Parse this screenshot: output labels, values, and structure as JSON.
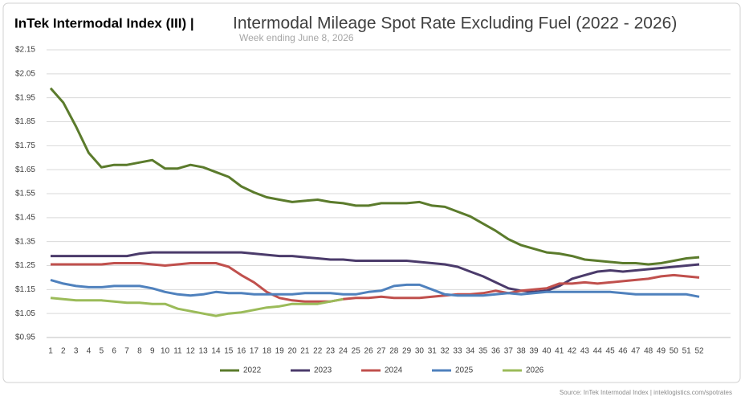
{
  "chart_data": {
    "type": "line",
    "brand": "InTek Intermodal Index (III) |",
    "title": "Intermodal Mileage Spot Rate Excluding Fuel (2022 - 2026)",
    "subtitle": "Week ending June 8, 2026",
    "source": "Source: InTek Intermodal Index | inteklogistics.com/spotrates",
    "x": [
      1,
      2,
      3,
      4,
      5,
      6,
      7,
      8,
      9,
      10,
      11,
      12,
      13,
      14,
      15,
      16,
      17,
      18,
      19,
      20,
      21,
      22,
      23,
      24,
      25,
      26,
      27,
      28,
      29,
      30,
      31,
      32,
      33,
      34,
      35,
      36,
      37,
      38,
      39,
      40,
      41,
      42,
      43,
      44,
      45,
      46,
      47,
      48,
      49,
      50,
      51,
      52
    ],
    "xlim": [
      1,
      52
    ],
    "ylim": [
      0.95,
      2.15
    ],
    "yticks": [
      {
        "value": 0.95,
        "label": "$0.95"
      },
      {
        "value": 1.05,
        "label": "$1.05"
      },
      {
        "value": 1.15,
        "label": "$1.15"
      },
      {
        "value": 1.25,
        "label": "$1.25"
      },
      {
        "value": 1.35,
        "label": "$1.35"
      },
      {
        "value": 1.45,
        "label": "$1.45"
      },
      {
        "value": 1.55,
        "label": "$1.55"
      },
      {
        "value": 1.65,
        "label": "$1.65"
      },
      {
        "value": 1.75,
        "label": "$1.75"
      },
      {
        "value": 1.85,
        "label": "$1.85"
      },
      {
        "value": 1.95,
        "label": "$1.95"
      },
      {
        "value": 2.05,
        "label": "$2.05"
      },
      {
        "value": 2.15,
        "label": "$2.15"
      }
    ],
    "grid": true,
    "legend": "bottom",
    "series": [
      {
        "name": "2022",
        "color": "#5b7b2c",
        "values": [
          1.99,
          1.93,
          1.83,
          1.72,
          1.66,
          1.67,
          1.67,
          1.68,
          1.69,
          1.655,
          1.655,
          1.67,
          1.66,
          1.64,
          1.62,
          1.58,
          1.555,
          1.535,
          1.525,
          1.515,
          1.52,
          1.525,
          1.515,
          1.51,
          1.5,
          1.5,
          1.51,
          1.51,
          1.51,
          1.515,
          1.5,
          1.495,
          1.475,
          1.455,
          1.425,
          1.395,
          1.36,
          1.335,
          1.32,
          1.305,
          1.3,
          1.29,
          1.275,
          1.27,
          1.265,
          1.26,
          1.26,
          1.255,
          1.26,
          1.27,
          1.28,
          1.285
        ]
      },
      {
        "name": "2023",
        "color": "#4b3b6b",
        "values": [
          1.29,
          1.29,
          1.29,
          1.29,
          1.29,
          1.29,
          1.29,
          1.3,
          1.305,
          1.305,
          1.305,
          1.305,
          1.305,
          1.305,
          1.305,
          1.305,
          1.3,
          1.295,
          1.29,
          1.29,
          1.285,
          1.28,
          1.275,
          1.275,
          1.27,
          1.27,
          1.27,
          1.27,
          1.27,
          1.265,
          1.26,
          1.255,
          1.245,
          1.225,
          1.205,
          1.18,
          1.155,
          1.145,
          1.14,
          1.145,
          1.165,
          1.195,
          1.21,
          1.225,
          1.23,
          1.225,
          1.23,
          1.235,
          1.24,
          1.245,
          1.25,
          1.255
        ]
      },
      {
        "name": "2024",
        "color": "#c0504d",
        "values": [
          1.255,
          1.255,
          1.255,
          1.255,
          1.255,
          1.26,
          1.26,
          1.26,
          1.255,
          1.25,
          1.255,
          1.26,
          1.26,
          1.26,
          1.245,
          1.21,
          1.18,
          1.14,
          1.115,
          1.105,
          1.1,
          1.1,
          1.1,
          1.11,
          1.115,
          1.115,
          1.12,
          1.115,
          1.115,
          1.115,
          1.12,
          1.125,
          1.13,
          1.13,
          1.135,
          1.145,
          1.135,
          1.145,
          1.15,
          1.155,
          1.175,
          1.175,
          1.18,
          1.175,
          1.18,
          1.185,
          1.19,
          1.195,
          1.205,
          1.21,
          1.205,
          1.2
        ]
      },
      {
        "name": "2025",
        "color": "#4f81bd",
        "values": [
          1.19,
          1.175,
          1.165,
          1.16,
          1.16,
          1.165,
          1.165,
          1.165,
          1.155,
          1.14,
          1.13,
          1.125,
          1.13,
          1.14,
          1.135,
          1.135,
          1.13,
          1.13,
          1.13,
          1.13,
          1.135,
          1.135,
          1.135,
          1.13,
          1.13,
          1.14,
          1.145,
          1.165,
          1.17,
          1.17,
          1.15,
          1.13,
          1.125,
          1.125,
          1.125,
          1.13,
          1.135,
          1.13,
          1.135,
          1.14,
          1.14,
          1.14,
          1.14,
          1.14,
          1.14,
          1.135,
          1.13,
          1.13,
          1.13,
          1.13,
          1.13,
          1.12
        ]
      },
      {
        "name": "2026",
        "color": "#9bbb59",
        "values": [
          1.115,
          1.11,
          1.105,
          1.105,
          1.105,
          1.1,
          1.095,
          1.095,
          1.09,
          1.09,
          1.07,
          1.06,
          1.05,
          1.04,
          1.05,
          1.055,
          1.065,
          1.075,
          1.08,
          1.09,
          1.09,
          1.09,
          1.1,
          1.11,
          null,
          null,
          null,
          null,
          null,
          null,
          null,
          null,
          null,
          null,
          null,
          null,
          null,
          null,
          null,
          null,
          null,
          null,
          null,
          null,
          null,
          null,
          null,
          null,
          null,
          null,
          null,
          null
        ]
      }
    ]
  }
}
